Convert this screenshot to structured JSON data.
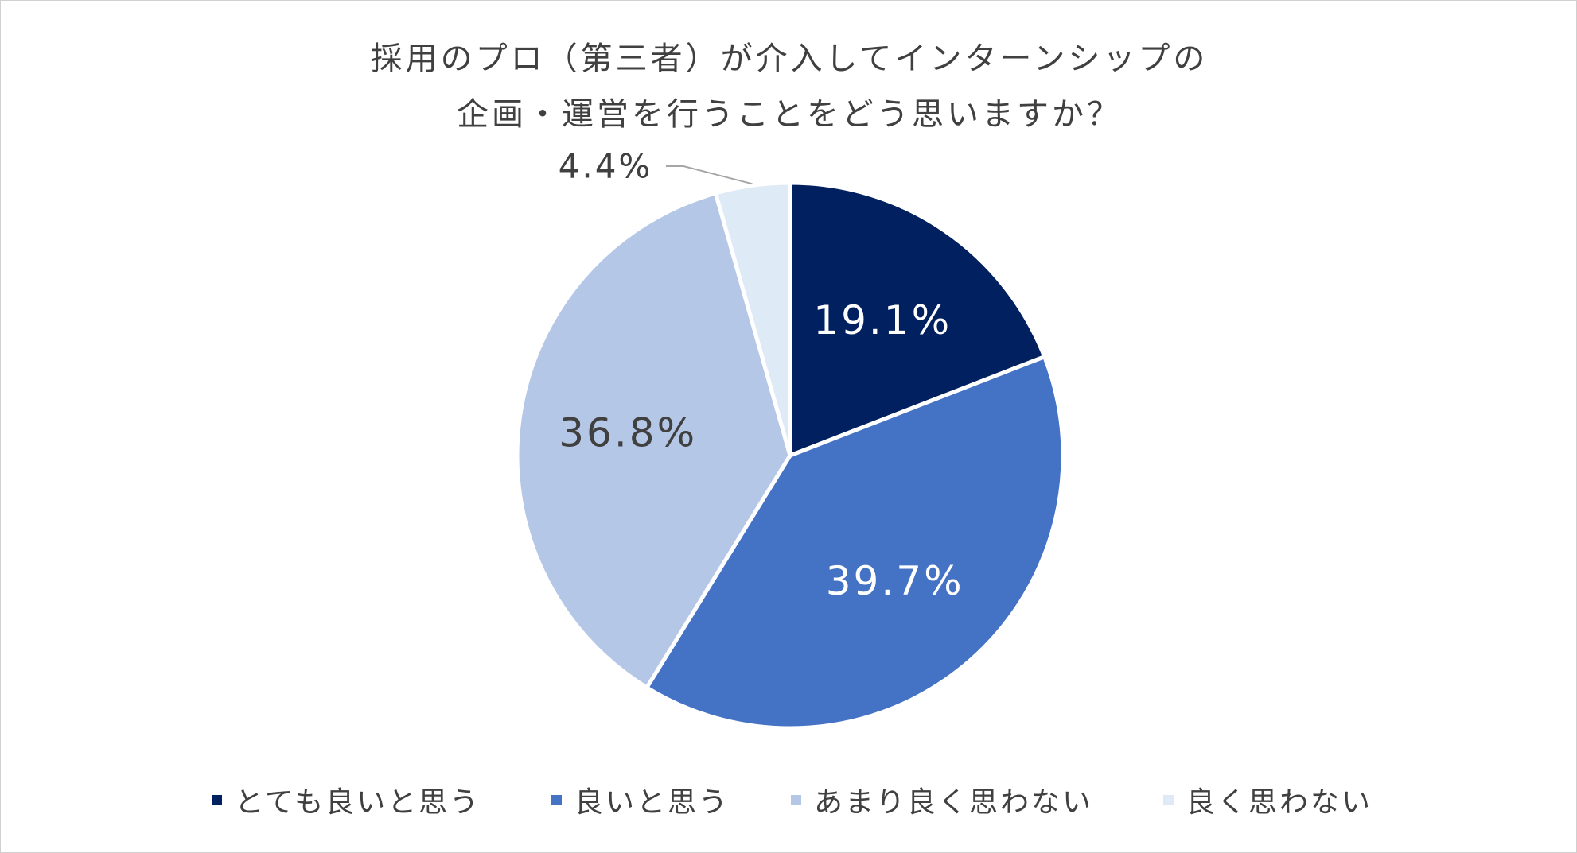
{
  "chart_data": {
    "type": "pie",
    "title": [
      "採用のプロ（第三者）が介入してインターンシップの",
      "企画・運営を行うことをどう思いますか？"
    ],
    "categories": [
      "とても良いと思う",
      "良いと思う",
      "あまり良く思わない",
      "良く思わない"
    ],
    "values": [
      19.1,
      39.7,
      36.8,
      4.4
    ],
    "data_labels": [
      "19.1%",
      "39.7%",
      "36.8%",
      "4.4%"
    ],
    "colors": [
      "#002060",
      "#4472C4",
      "#B4C7E7",
      "#DEEBF7"
    ],
    "label_colors": [
      "#ffffff",
      "#ffffff",
      "#404040",
      "#404040"
    ],
    "start_angle_deg": 0,
    "direction": "clockwise",
    "legend_position": "bottom"
  }
}
